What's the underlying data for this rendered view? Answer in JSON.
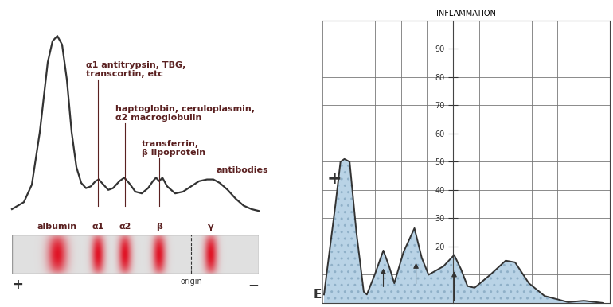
{
  "chart_data": [
    {
      "type": "line",
      "x": [
        15,
        30,
        40,
        50,
        60,
        66,
        72,
        78,
        84,
        90,
        96,
        102,
        108,
        114,
        120,
        124,
        130,
        136,
        142,
        150,
        156,
        162,
        170,
        178,
        186,
        192,
        196,
        200,
        204,
        210,
        220,
        230,
        240,
        250,
        260,
        268,
        276,
        286,
        296,
        306,
        316,
        325
      ],
      "values": [
        1,
        5,
        15,
        45,
        85,
        97,
        100,
        95,
        75,
        45,
        25,
        16,
        13,
        14,
        17,
        18,
        15,
        12,
        13,
        17,
        19,
        16,
        11,
        10,
        13,
        17,
        19,
        17,
        19,
        14,
        10,
        11,
        14,
        17,
        18,
        18,
        16,
        12,
        7,
        3,
        1,
        0
      ],
      "color": "#333333",
      "tick_labels": false,
      "bands": [
        {
          "name": "albumin",
          "x": 72
        },
        {
          "name": "α1",
          "x": 123
        },
        {
          "name": "α2",
          "x": 157
        },
        {
          "name": "β",
          "x": 200
        },
        {
          "name": "γ",
          "x": 265
        }
      ],
      "annotations": [
        {
          "text": "α1 antitrypsin, TBG,\ntranscortin, etc",
          "band": "α1"
        },
        {
          "text": "haptoglobin, ceruloplasmin,\nα2 macroglobulin",
          "band": "α2"
        },
        {
          "text": "transferrin,\nβ lipoprotein",
          "band": "β"
        },
        {
          "text": "antibodies",
          "band": "γ"
        }
      ],
      "strip": {
        "origin": {
          "label": "origin",
          "x": 240
        },
        "left_label": "+",
        "right_label": "−"
      }
    },
    {
      "type": "area",
      "title": "INFLAMMATION",
      "x": [
        0.06,
        0.5,
        0.69,
        0.84,
        1.04,
        1.3,
        1.58,
        1.7,
        2.0,
        2.33,
        2.55,
        2.75,
        3.1,
        3.52,
        3.8,
        4.06,
        4.63,
        5.04,
        5.3,
        5.55,
        5.82,
        6.42,
        7.01,
        7.37,
        7.9,
        8.5,
        9.4,
        10.0,
        10.75
      ],
      "values": [
        3,
        35,
        50,
        51,
        50,
        25,
        4,
        3,
        10,
        18.6,
        13,
        7,
        18,
        26.5,
        16,
        10,
        13,
        17,
        12,
        6,
        5.4,
        10,
        15,
        14.4,
        7,
        2.5,
        0.3,
        0.8,
        0
      ],
      "color": "#b9d3e6",
      "xlim": [
        0,
        11
      ],
      "xticks": [
        0,
        1,
        2,
        3,
        4,
        5,
        6,
        7,
        8,
        9,
        10,
        11
      ],
      "ylim": [
        0,
        100
      ],
      "yticks": [
        10,
        20,
        30,
        40,
        50,
        60,
        70,
        80,
        90
      ],
      "grid": true,
      "tick_labels": "y",
      "arrows": [
        {
          "x": 2.33,
          "from": 5,
          "to": 13
        },
        {
          "x": 3.58,
          "from": 6,
          "to": 15
        },
        {
          "x": 5.04,
          "from": 0,
          "to": 12
        }
      ],
      "annotations": [
        "+",
        "E"
      ]
    }
  ]
}
